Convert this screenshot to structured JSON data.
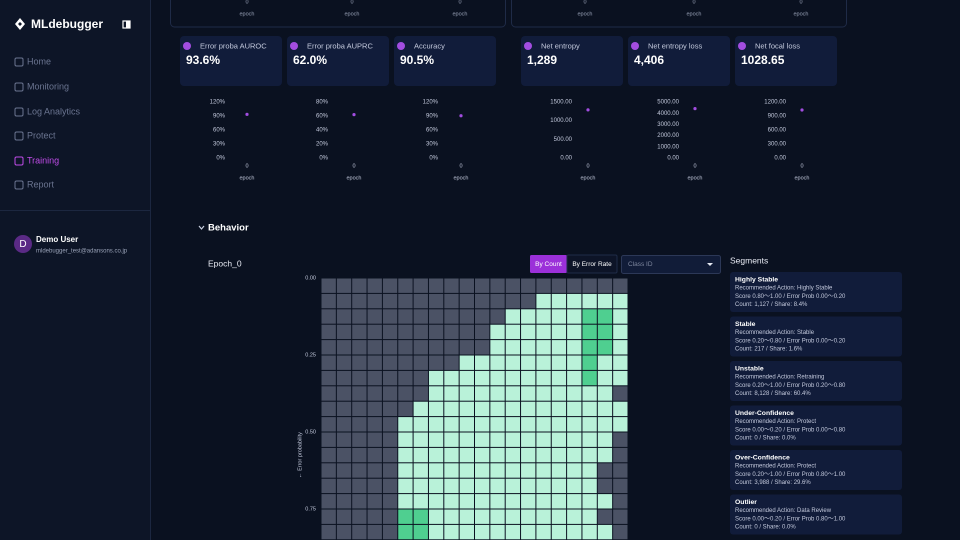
{
  "sidebar": {
    "logo": "MLdebugger",
    "nav": [
      "Home",
      "Monitoring",
      "Log Analytics",
      "Protect",
      "Training",
      "Report"
    ],
    "active_index": 4
  },
  "user": {
    "initial": "D",
    "name": "Demo User",
    "email": "mldebugger_test@adansons.co.jp"
  },
  "top_row": [
    {
      "tick": 0,
      "label": "epoch"
    },
    {
      "tick": 0,
      "label": "epoch"
    },
    {
      "tick": 0,
      "label": "epoch"
    },
    {
      "tick": 0,
      "label": "epoch"
    },
    {
      "tick": 0,
      "label": "epoch"
    },
    {
      "tick": 0,
      "label": "epoch"
    }
  ],
  "metrics": [
    {
      "title": "Error proba AUROC",
      "value": "93.6%"
    },
    {
      "title": "Error proba AUPRC",
      "value": "62.0%"
    },
    {
      "title": "Accuracy",
      "value": "90.5%"
    },
    {
      "title": "Net entropy",
      "value": "1,289"
    },
    {
      "title": "Net entropy loss",
      "value": "4,406"
    },
    {
      "title": "Net focal loss",
      "value": "1028.65"
    }
  ],
  "chart_data": [
    {
      "type": "scatter",
      "x": [
        0
      ],
      "values": [
        93.6
      ],
      "color": "#a24de0",
      "xlim": [
        -0.5,
        0.5
      ],
      "xticks": [
        0
      ],
      "xlabel": "epoch",
      "ylim": [
        0,
        120
      ],
      "yticks": [
        {
          "value": 0,
          "label": "0%"
        },
        {
          "value": 30,
          "label": "30%"
        },
        {
          "value": 60,
          "label": "60%"
        },
        {
          "value": 90,
          "label": "90%"
        },
        {
          "value": 120,
          "label": "120%"
        }
      ]
    },
    {
      "type": "scatter",
      "x": [
        0
      ],
      "values": [
        62.0
      ],
      "color": "#a24de0",
      "xlim": [
        -0.5,
        0.5
      ],
      "xticks": [
        0
      ],
      "xlabel": "epoch",
      "ylim": [
        0,
        80
      ],
      "yticks": [
        {
          "value": 0,
          "label": "0%"
        },
        {
          "value": 20,
          "label": "20%"
        },
        {
          "value": 40,
          "label": "40%"
        },
        {
          "value": 60,
          "label": "60%"
        },
        {
          "value": 80,
          "label": "80%"
        }
      ]
    },
    {
      "type": "scatter",
      "x": [
        0
      ],
      "values": [
        90.5
      ],
      "color": "#a24de0",
      "xlim": [
        -0.5,
        0.5
      ],
      "xticks": [
        0
      ],
      "xlabel": "epoch",
      "ylim": [
        0,
        120
      ],
      "yticks": [
        {
          "value": 0,
          "label": "0%"
        },
        {
          "value": 30,
          "label": "30%"
        },
        {
          "value": 60,
          "label": "60%"
        },
        {
          "value": 90,
          "label": "90%"
        },
        {
          "value": 120,
          "label": "120%"
        }
      ]
    },
    {
      "type": "scatter",
      "x": [
        0
      ],
      "values": [
        1289
      ],
      "color": "#a24de0",
      "xlim": [
        -0.5,
        0.5
      ],
      "xticks": [
        0
      ],
      "xlabel": "epoch",
      "ylim": [
        0,
        1500
      ],
      "yticks": [
        {
          "value": 0,
          "label": "0.00"
        },
        {
          "value": 500,
          "label": "500.00"
        },
        {
          "value": 1000,
          "label": "1000.00"
        },
        {
          "value": 1500,
          "label": "1500.00"
        }
      ]
    },
    {
      "type": "scatter",
      "x": [
        0
      ],
      "values": [
        4406
      ],
      "color": "#a24de0",
      "xlim": [
        -0.5,
        0.5
      ],
      "xticks": [
        0
      ],
      "xlabel": "epoch",
      "ylim": [
        0,
        5000
      ],
      "yticks": [
        {
          "value": 0,
          "label": "0.00"
        },
        {
          "value": 1000,
          "label": "1000.00"
        },
        {
          "value": 2000,
          "label": "2000.00"
        },
        {
          "value": 3000,
          "label": "3000.00"
        },
        {
          "value": 4000,
          "label": "4000.00"
        },
        {
          "value": 5000,
          "label": "5000.00"
        }
      ]
    },
    {
      "type": "scatter",
      "x": [
        0
      ],
      "values": [
        1028.65
      ],
      "color": "#a24de0",
      "xlim": [
        -0.5,
        0.5
      ],
      "xticks": [
        0
      ],
      "xlabel": "epoch",
      "ylim": [
        0,
        1200
      ],
      "yticks": [
        {
          "value": 0,
          "label": "0.00"
        },
        {
          "value": 300,
          "label": "300.00"
        },
        {
          "value": 600,
          "label": "600.00"
        },
        {
          "value": 900,
          "label": "900.00"
        },
        {
          "value": 1200,
          "label": "1200.00"
        }
      ]
    },
    {
      "type": "heatmap",
      "ylabel": "← Error probability",
      "ylim": [
        0,
        0.85
      ],
      "yticks": [
        {
          "value": 0,
          "label": "0.00"
        },
        {
          "value": 0.25,
          "label": "0.25"
        },
        {
          "value": 0.5,
          "label": "0.50"
        },
        {
          "value": 0.75,
          "label": "0.75"
        }
      ],
      "colors": [
        "#4b5265",
        "#b9f2d9",
        "#4fcf90"
      ],
      "values": [
        [
          0,
          0,
          0,
          0,
          0,
          0,
          0,
          0,
          0,
          0,
          0,
          0,
          0,
          0,
          0,
          0,
          0,
          0,
          0,
          0
        ],
        [
          0,
          0,
          0,
          0,
          0,
          0,
          0,
          0,
          0,
          0,
          0,
          0,
          0,
          0,
          1,
          1,
          1,
          1,
          1,
          1
        ],
        [
          0,
          0,
          0,
          0,
          0,
          0,
          0,
          0,
          0,
          0,
          0,
          0,
          1,
          1,
          1,
          1,
          1,
          2,
          2,
          1
        ],
        [
          0,
          0,
          0,
          0,
          0,
          0,
          0,
          0,
          0,
          0,
          0,
          1,
          1,
          1,
          1,
          1,
          1,
          2,
          2,
          1
        ],
        [
          0,
          0,
          0,
          0,
          0,
          0,
          0,
          0,
          0,
          0,
          0,
          1,
          1,
          1,
          1,
          1,
          1,
          2,
          2,
          1
        ],
        [
          0,
          0,
          0,
          0,
          0,
          0,
          0,
          0,
          0,
          1,
          1,
          1,
          1,
          1,
          1,
          1,
          1,
          2,
          1,
          1
        ],
        [
          0,
          0,
          0,
          0,
          0,
          0,
          0,
          1,
          1,
          1,
          1,
          1,
          1,
          1,
          1,
          1,
          1,
          2,
          1,
          1
        ],
        [
          0,
          0,
          0,
          0,
          0,
          0,
          0,
          1,
          1,
          1,
          1,
          1,
          1,
          1,
          1,
          1,
          1,
          1,
          1,
          0
        ],
        [
          0,
          0,
          0,
          0,
          0,
          0,
          1,
          1,
          1,
          1,
          1,
          1,
          1,
          1,
          1,
          1,
          1,
          1,
          1,
          1
        ],
        [
          0,
          0,
          0,
          0,
          0,
          1,
          1,
          1,
          1,
          1,
          1,
          1,
          1,
          1,
          1,
          1,
          1,
          1,
          1,
          1
        ],
        [
          0,
          0,
          0,
          0,
          0,
          1,
          1,
          1,
          1,
          1,
          1,
          1,
          1,
          1,
          1,
          1,
          1,
          1,
          1,
          0
        ],
        [
          0,
          0,
          0,
          0,
          0,
          1,
          1,
          1,
          1,
          1,
          1,
          1,
          1,
          1,
          1,
          1,
          1,
          1,
          1,
          0
        ],
        [
          0,
          0,
          0,
          0,
          0,
          1,
          1,
          1,
          1,
          1,
          1,
          1,
          1,
          1,
          1,
          1,
          1,
          1,
          0,
          0
        ],
        [
          0,
          0,
          0,
          0,
          0,
          1,
          1,
          1,
          1,
          1,
          1,
          1,
          1,
          1,
          1,
          1,
          1,
          1,
          0,
          0
        ],
        [
          0,
          0,
          0,
          0,
          0,
          1,
          1,
          1,
          1,
          1,
          1,
          1,
          1,
          1,
          1,
          1,
          1,
          1,
          1,
          0
        ],
        [
          0,
          0,
          0,
          0,
          0,
          2,
          2,
          1,
          1,
          1,
          1,
          1,
          1,
          1,
          1,
          1,
          1,
          1,
          0,
          0
        ],
        [
          0,
          0,
          0,
          0,
          0,
          2,
          2,
          1,
          1,
          1,
          1,
          1,
          1,
          1,
          1,
          1,
          1,
          1,
          1,
          0
        ]
      ]
    }
  ],
  "behavior": {
    "title": "Behavior",
    "epoch": "Epoch_0",
    "tabs": [
      "By Count",
      "By Error Rate"
    ],
    "active_tab": 0,
    "select": "Class ID",
    "segments_title": "Segments",
    "segments": [
      {
        "name": "Highly Stable",
        "action": "Recommended Action: Highly Stable",
        "score": "Score 0.80〜1.00 / Error Prob 0.00〜0.20",
        "count": "Count: 1,127 / Share: 8.4%"
      },
      {
        "name": "Stable",
        "action": "Recommended Action: Stable",
        "score": "Score 0.20〜0.80 / Error Prob 0.00〜0.20",
        "count": "Count: 217 / Share: 1.6%"
      },
      {
        "name": "Unstable",
        "action": "Recommended Action: Retraining",
        "score": "Score 0.20〜1.00 / Error Prob 0.20〜0.80",
        "count": "Count: 8,128 / Share: 60.4%"
      },
      {
        "name": "Under-Confidence",
        "action": "Recommended Action: Protect",
        "score": "Score 0.00〜0.20 / Error Prob 0.00〜0.80",
        "count": "Count: 0 / Share: 0.0%"
      },
      {
        "name": "Over-Confidence",
        "action": "Recommended Action: Protect",
        "score": "Score 0.20〜1.00 / Error Prob 0.80〜1.00",
        "count": "Count: 3,988 / Share: 29.6%"
      },
      {
        "name": "Outlier",
        "action": "Recommended Action: Data Review",
        "score": "Score 0.00〜0.20 / Error Prob 0.80〜1.00",
        "count": "Count: 0 / Share: 0.0%"
      }
    ]
  }
}
